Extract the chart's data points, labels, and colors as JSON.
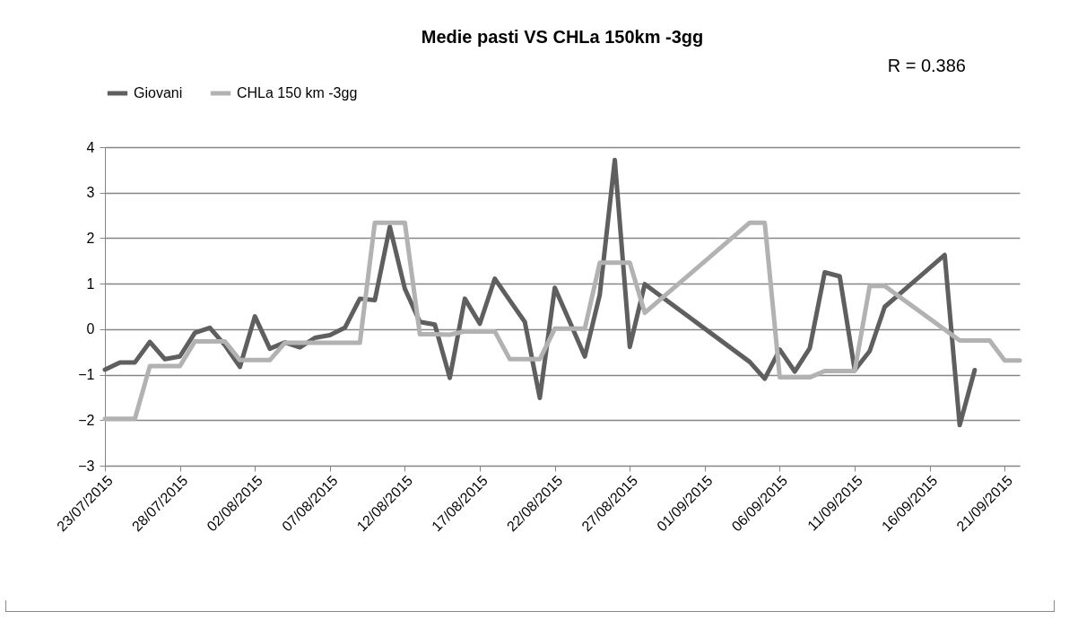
{
  "chart_data": {
    "type": "line",
    "title": "Medie pasti VS CHLa 150km -3gg",
    "annotations": [
      "R = 0.386"
    ],
    "xlim": [
      "2015-07-23",
      "2015-09-22"
    ],
    "xticks": [
      {
        "value": "2015-07-23",
        "label": "23/07/2015"
      },
      {
        "value": "2015-07-28",
        "label": "28/07/2015"
      },
      {
        "value": "2015-08-02",
        "label": "02/08/2015"
      },
      {
        "value": "2015-08-07",
        "label": "07/08/2015"
      },
      {
        "value": "2015-08-12",
        "label": "12/08/2015"
      },
      {
        "value": "2015-08-17",
        "label": "17/08/2015"
      },
      {
        "value": "2015-08-22",
        "label": "22/08/2015"
      },
      {
        "value": "2015-08-27",
        "label": "27/08/2015"
      },
      {
        "value": "2015-09-01",
        "label": "01/09/2015"
      },
      {
        "value": "2015-09-06",
        "label": "06/09/2015"
      },
      {
        "value": "2015-09-11",
        "label": "11/09/2015"
      },
      {
        "value": "2015-09-16",
        "label": "16/09/2015"
      },
      {
        "value": "2015-09-21",
        "label": "21/09/2015"
      }
    ],
    "ylim": [
      -3,
      4
    ],
    "yticks": [
      -3,
      -2,
      -1,
      0,
      1,
      2,
      3,
      4
    ],
    "grid": "y",
    "legend": "top",
    "series": [
      {
        "name": "Giovani",
        "color": "#5f5f5f",
        "x": [
          "2015-07-23",
          "2015-07-24",
          "2015-07-25",
          "2015-07-26",
          "2015-07-27",
          "2015-07-28",
          "2015-07-29",
          "2015-07-30",
          "2015-07-31",
          "2015-08-01",
          "2015-08-02",
          "2015-08-03",
          "2015-08-04",
          "2015-08-05",
          "2015-08-06",
          "2015-08-07",
          "2015-08-08",
          "2015-08-09",
          "2015-08-10",
          "2015-08-11",
          "2015-08-12",
          "2015-08-13",
          "2015-08-14",
          "2015-08-15",
          "2015-08-16",
          "2015-08-17",
          "2015-08-18",
          "2015-08-19",
          "2015-08-20",
          "2015-08-21",
          "2015-08-22",
          "2015-08-23",
          "2015-08-24",
          "2015-08-25",
          "2015-08-26",
          "2015-08-27",
          "2015-08-28",
          "2015-09-04",
          "2015-09-05",
          "2015-09-06",
          "2015-09-07",
          "2015-09-08",
          "2015-09-09",
          "2015-09-10",
          "2015-09-11",
          "2015-09-12",
          "2015-09-13",
          "2015-09-17",
          "2015-09-18",
          "2015-09-19"
        ],
        "values": [
          -0.89,
          -0.73,
          -0.73,
          -0.28,
          -0.66,
          -0.6,
          -0.08,
          0.03,
          -0.35,
          -0.83,
          0.28,
          -0.43,
          -0.29,
          -0.4,
          -0.19,
          -0.13,
          0.03,
          0.67,
          0.64,
          2.25,
          0.89,
          0.16,
          0.1,
          -1.07,
          0.67,
          0.12,
          1.11,
          0.63,
          0.16,
          -1.51,
          0.91,
          0.16,
          -0.6,
          0.76,
          3.72,
          -0.39,
          0.99,
          -0.72,
          -1.09,
          -0.45,
          -0.93,
          -0.42,
          1.25,
          1.16,
          -0.9,
          -0.48,
          0.49,
          1.63,
          -2.11,
          -0.9
        ]
      },
      {
        "name": "CHLa 150 km -3gg",
        "color": "#b2b2b2",
        "x": [
          "2015-07-23",
          "2015-07-24",
          "2015-07-25",
          "2015-07-26",
          "2015-07-27",
          "2015-07-28",
          "2015-07-29",
          "2015-07-30",
          "2015-07-31",
          "2015-08-01",
          "2015-08-02",
          "2015-08-03",
          "2015-08-04",
          "2015-08-05",
          "2015-08-06",
          "2015-08-07",
          "2015-08-08",
          "2015-08-09",
          "2015-08-10",
          "2015-08-11",
          "2015-08-12",
          "2015-08-13",
          "2015-08-14",
          "2015-08-15",
          "2015-08-16",
          "2015-08-17",
          "2015-08-18",
          "2015-08-19",
          "2015-08-20",
          "2015-08-21",
          "2015-08-22",
          "2015-08-23",
          "2015-08-24",
          "2015-08-25",
          "2015-08-26",
          "2015-08-27",
          "2015-08-28",
          "2015-09-04",
          "2015-09-05",
          "2015-09-06",
          "2015-09-07",
          "2015-09-08",
          "2015-09-09",
          "2015-09-10",
          "2015-09-11",
          "2015-09-12",
          "2015-09-13",
          "2015-09-18",
          "2015-09-19",
          "2015-09-20",
          "2015-09-21",
          "2015-09-22"
        ],
        "values": [
          -1.97,
          -1.97,
          -1.97,
          -0.81,
          -0.81,
          -0.81,
          -0.27,
          -0.27,
          -0.27,
          -0.68,
          -0.68,
          -0.68,
          -0.3,
          -0.3,
          -0.3,
          -0.3,
          -0.3,
          -0.3,
          2.34,
          2.34,
          2.34,
          -0.11,
          -0.11,
          -0.12,
          -0.05,
          -0.05,
          -0.05,
          -0.66,
          -0.66,
          -0.66,
          0.01,
          0.01,
          0.01,
          1.46,
          1.46,
          1.46,
          0.36,
          2.34,
          2.34,
          -1.06,
          -1.06,
          -1.06,
          -0.92,
          -0.92,
          -0.92,
          0.95,
          0.95,
          -0.25,
          -0.25,
          -0.25,
          -0.69,
          -0.69
        ]
      }
    ]
  }
}
